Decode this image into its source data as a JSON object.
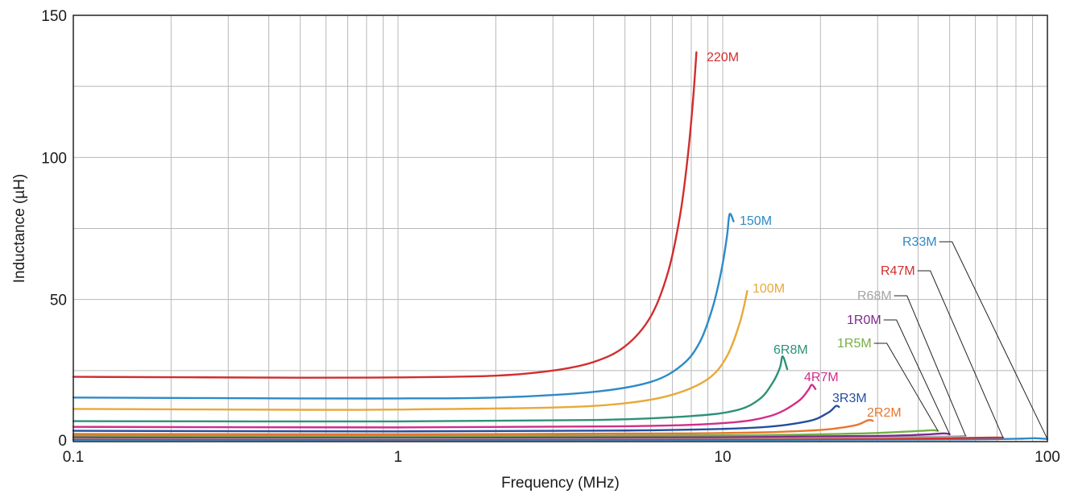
{
  "chart_data": {
    "type": "line",
    "xlabel": "Frequency (MHz)",
    "ylabel": "Inductance (µH)",
    "x_scale": "log",
    "xlim": [
      0.1,
      100
    ],
    "ylim": [
      0,
      150
    ],
    "x_ticks": [
      {
        "value": 0.1,
        "label": "0.1"
      },
      {
        "value": 1,
        "label": "1"
      },
      {
        "value": 10,
        "label": "10"
      },
      {
        "value": 100,
        "label": "100"
      }
    ],
    "y_ticks": [
      {
        "value": 0,
        "label": "0"
      },
      {
        "value": 50,
        "label": "50"
      },
      {
        "value": 100,
        "label": "100"
      },
      {
        "value": 150,
        "label": "150"
      }
    ],
    "grid": true,
    "series": [
      {
        "name": "220M",
        "color": "#d12e2e",
        "points": [
          [
            0.1,
            22.8
          ],
          [
            0.5,
            22.5
          ],
          [
            1,
            22.6
          ],
          [
            2,
            23.2
          ],
          [
            3,
            25.0
          ],
          [
            4,
            28.0
          ],
          [
            5,
            33.5
          ],
          [
            6,
            44.0
          ],
          [
            6.8,
            60.0
          ],
          [
            7.4,
            80.0
          ],
          [
            7.8,
            100.0
          ],
          [
            8.1,
            120.0
          ],
          [
            8.3,
            137.0
          ]
        ]
      },
      {
        "name": "150M",
        "color": "#2e8ac7",
        "points": [
          [
            0.1,
            15.5
          ],
          [
            0.5,
            15.2
          ],
          [
            1,
            15.2
          ],
          [
            2,
            15.5
          ],
          [
            4,
            17.5
          ],
          [
            6,
            21.0
          ],
          [
            7.5,
            27.0
          ],
          [
            8.5,
            35.0
          ],
          [
            9.3,
            47.0
          ],
          [
            9.9,
            60.0
          ],
          [
            10.3,
            72.0
          ],
          [
            10.5,
            80.0
          ],
          [
            10.8,
            77.5
          ]
        ]
      },
      {
        "name": "100M",
        "color": "#e8a93a",
        "points": [
          [
            0.1,
            11.5
          ],
          [
            0.5,
            11.2
          ],
          [
            1,
            11.3
          ],
          [
            3,
            12.0
          ],
          [
            5,
            13.5
          ],
          [
            7,
            16.5
          ],
          [
            9,
            22.0
          ],
          [
            10.3,
            30.0
          ],
          [
            11.3,
            42.0
          ],
          [
            11.9,
            53.0
          ]
        ]
      },
      {
        "name": "6R8M",
        "color": "#2d9177",
        "points": [
          [
            0.1,
            7.2
          ],
          [
            1,
            7.1
          ],
          [
            4,
            7.6
          ],
          [
            8,
            9.0
          ],
          [
            11,
            11.0
          ],
          [
            13,
            15.0
          ],
          [
            14.3,
            21.0
          ],
          [
            15.0,
            26.0
          ],
          [
            15.3,
            30.0
          ],
          [
            15.8,
            25.5
          ]
        ]
      },
      {
        "name": "4R7M",
        "color": "#d12e8a",
        "points": [
          [
            0.1,
            5.2
          ],
          [
            1,
            5.0
          ],
          [
            5,
            5.4
          ],
          [
            10,
            6.5
          ],
          [
            14,
            9.0
          ],
          [
            17,
            14.0
          ],
          [
            18.3,
            18.0
          ],
          [
            18.8,
            20.0
          ],
          [
            19.3,
            18.5
          ]
        ]
      },
      {
        "name": "3R3M",
        "color": "#244f9e",
        "points": [
          [
            0.1,
            3.8
          ],
          [
            1,
            3.6
          ],
          [
            5,
            3.9
          ],
          [
            12,
            4.8
          ],
          [
            18,
            7.0
          ],
          [
            21,
            10.0
          ],
          [
            22.3,
            12.5
          ],
          [
            22.8,
            12.2
          ]
        ]
      },
      {
        "name": "2R2M",
        "color": "#e8762e",
        "points": [
          [
            0.1,
            2.7
          ],
          [
            1,
            2.6
          ],
          [
            8,
            2.9
          ],
          [
            18,
            3.8
          ],
          [
            25,
            5.5
          ],
          [
            28,
            7.5
          ],
          [
            29,
            7.3
          ]
        ]
      },
      {
        "name": "1R5M",
        "color": "#74b043",
        "points": [
          [
            0.1,
            2.1
          ],
          [
            1,
            2.0
          ],
          [
            10,
            2.2
          ],
          [
            25,
            2.8
          ],
          [
            38,
            3.6
          ],
          [
            44,
            4.0
          ],
          [
            46,
            3.8
          ]
        ]
      },
      {
        "name": "1R0M",
        "color": "#7d2a8a",
        "points": [
          [
            0.1,
            1.6
          ],
          [
            1,
            1.5
          ],
          [
            10,
            1.6
          ],
          [
            30,
            2.0
          ],
          [
            42,
            2.5
          ],
          [
            48,
            2.9
          ],
          [
            50,
            2.6
          ]
        ]
      },
      {
        "name": "R68M",
        "color": "#a5a5a5",
        "points": [
          [
            0.1,
            1.3
          ],
          [
            1,
            1.2
          ],
          [
            10,
            1.3
          ],
          [
            30,
            1.5
          ],
          [
            50,
            1.8
          ],
          [
            56,
            2.0
          ]
        ]
      },
      {
        "name": "R47M",
        "color": "#d12e2e",
        "points": [
          [
            0.1,
            0.9
          ],
          [
            1,
            0.85
          ],
          [
            10,
            0.9
          ],
          [
            40,
            1.1
          ],
          [
            65,
            1.4
          ],
          [
            73,
            1.4
          ]
        ]
      },
      {
        "name": "R33M",
        "color": "#2e8ac7",
        "points": [
          [
            0.1,
            0.6
          ],
          [
            1,
            0.55
          ],
          [
            10,
            0.6
          ],
          [
            50,
            0.75
          ],
          [
            80,
            1.0
          ],
          [
            92,
            1.2
          ],
          [
            100,
            0.9
          ]
        ]
      }
    ]
  }
}
